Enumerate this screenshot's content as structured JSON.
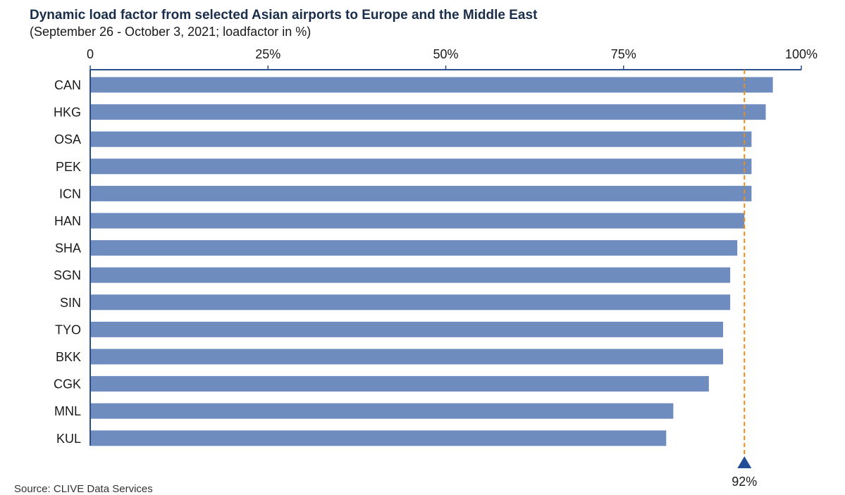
{
  "header": {
    "title": "Dynamic load factor from selected Asian airports to Europe and the Middle East",
    "subtitle": "(September 26 - October 3, 2021; loadfactor in %)"
  },
  "footer": {
    "source": "Source: CLIVE Data Services"
  },
  "colors": {
    "bar": "#6e8cbd",
    "axis": "#2b4f8c",
    "reference_line": "#f08a1c",
    "marker": "#1f4e96"
  },
  "chart_data": {
    "type": "bar",
    "orientation": "horizontal",
    "categories": [
      "CAN",
      "HKG",
      "OSA",
      "PEK",
      "ICN",
      "HAN",
      "SHA",
      "SGN",
      "SIN",
      "TYO",
      "BKK",
      "CGK",
      "MNL",
      "KUL"
    ],
    "values": [
      96,
      95,
      93,
      93,
      93,
      92,
      91,
      90,
      90,
      89,
      89,
      87,
      82,
      81
    ],
    "xlim": [
      0,
      100
    ],
    "x_ticks": [
      0,
      25,
      50,
      75,
      100
    ],
    "x_tick_labels": [
      "0",
      "25%",
      "50%",
      "75%",
      "100%"
    ],
    "axis_position": "top",
    "grid": false,
    "legend": "none",
    "reference_line": {
      "value": 92,
      "label": "92%",
      "style": "dashed",
      "marker": "triangle"
    }
  }
}
